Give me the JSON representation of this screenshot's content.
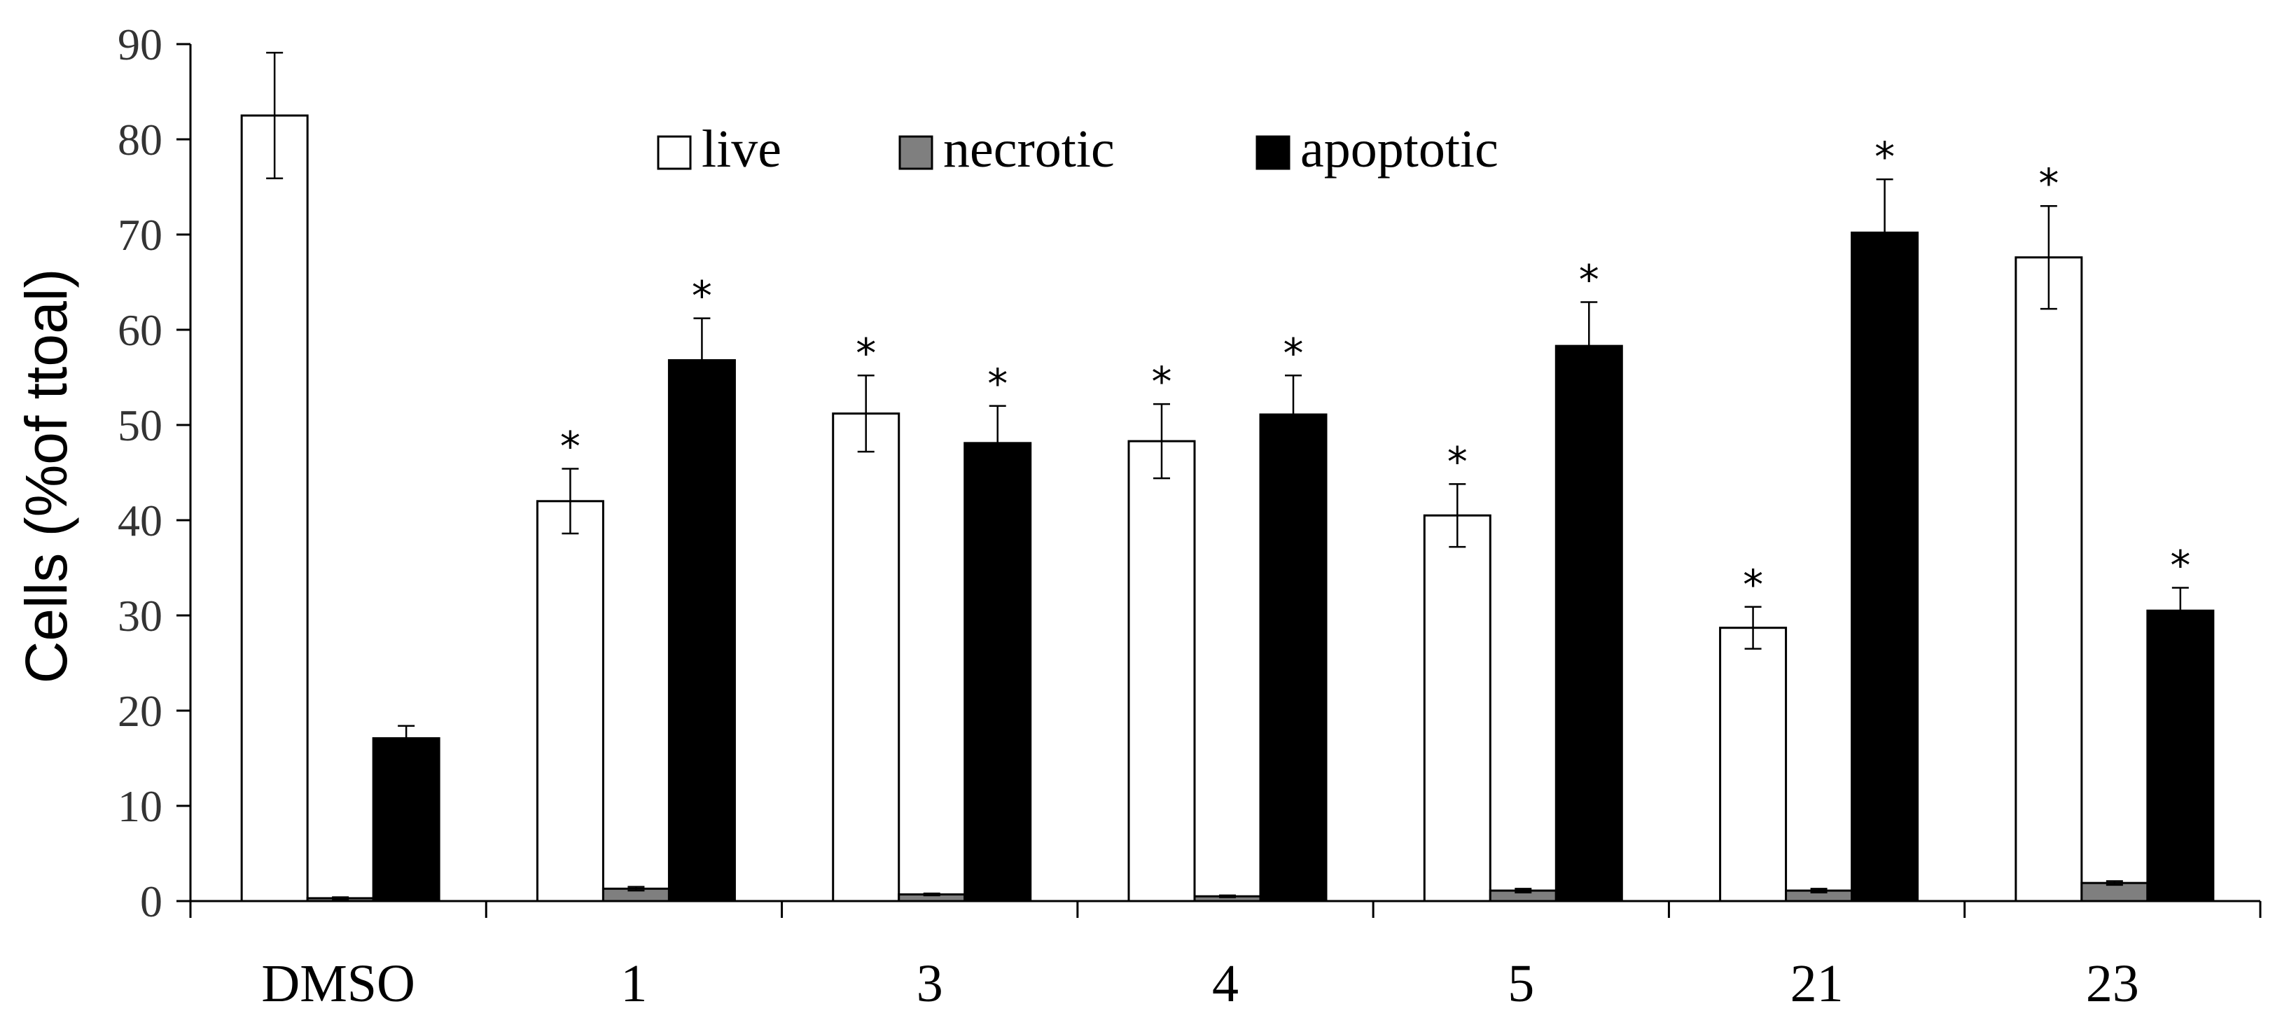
{
  "chart_data": {
    "type": "bar",
    "ylabel": "Cells (%of ttoal)",
    "xlabel": "",
    "ylim": [
      0,
      90
    ],
    "yticks": [
      0,
      10,
      20,
      30,
      40,
      50,
      60,
      70,
      80,
      90
    ],
    "categories": [
      "DMSO",
      "1",
      "3",
      "4",
      "5",
      "21",
      "23"
    ],
    "legend_position": "top-center",
    "series": [
      {
        "name": "live",
        "color": "#ffffff",
        "values": [
          82.5,
          42.0,
          51.2,
          48.3,
          40.5,
          28.7,
          67.6
        ],
        "errors": [
          6.6,
          3.4,
          4.0,
          3.9,
          3.3,
          2.2,
          5.4
        ],
        "significant": [
          false,
          true,
          true,
          true,
          true,
          true,
          true
        ]
      },
      {
        "name": "necrotic",
        "color": "#7f7f7f",
        "values": [
          0.3,
          1.3,
          0.7,
          0.5,
          1.1,
          1.1,
          1.9
        ],
        "errors": [
          0.1,
          0.2,
          0.1,
          0.1,
          0.2,
          0.2,
          0.2
        ],
        "significant": [
          false,
          false,
          false,
          false,
          false,
          false,
          false
        ]
      },
      {
        "name": "apoptotic",
        "color": "#000000",
        "values": [
          17.1,
          56.8,
          48.1,
          51.1,
          58.3,
          70.2,
          30.5
        ],
        "errors": [
          1.3,
          4.4,
          3.9,
          4.1,
          4.6,
          5.6,
          2.4
        ],
        "significant": [
          false,
          true,
          true,
          true,
          true,
          true,
          true
        ]
      }
    ],
    "significance_marker": "*"
  }
}
